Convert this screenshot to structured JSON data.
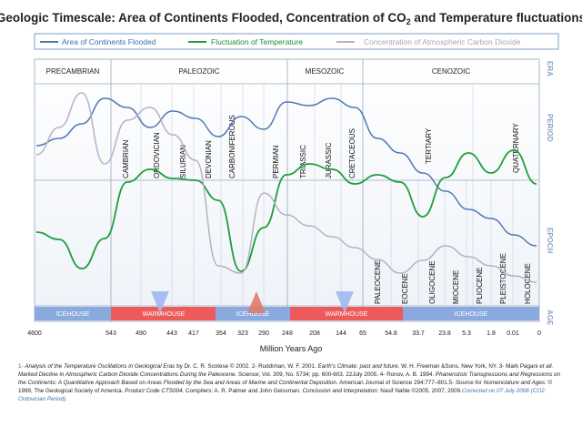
{
  "chart_data": {
    "type": "line",
    "title_parts": {
      "pre": "Geologic Timescale: Area of Continents Flooded, Concentration of CO",
      "sub": "2",
      "post": " and Temperature fluctuations"
    },
    "xlabel": "Million Years Ago",
    "x_ticks": [
      "4600",
      "543",
      "490",
      "443",
      "417",
      "354",
      "323",
      "290",
      "248",
      "208",
      "144",
      "65",
      "54.8",
      "33.7",
      "23.8",
      "5.3",
      "1.8",
      "0.01",
      "0"
    ],
    "legend": [
      {
        "name": "Area of Continents Flooded",
        "color": "#4f79b5"
      },
      {
        "name": "Fluctuation of Temperature",
        "color": "#1e9e3a"
      },
      {
        "name": "Concentration of Atmospheric Carbon Dioxide",
        "color": "#b6b0c9"
      }
    ],
    "row_labels": [
      "ERA",
      "PERIOD",
      "EPOCH",
      "AGE"
    ],
    "eras": [
      "PRECAMBRIAN",
      "PALEOZOIC",
      "MESOZOIC",
      "CENOZOIC"
    ],
    "periods": [
      "CAMBRIAN",
      "ORDOVICIAN",
      "SILURIAN",
      "DEVONIAN",
      "CARBONIFEROUS",
      "PERMIAN",
      "TRIASSIC",
      "JURASSIC",
      "CRETACEOUS",
      "TERTIARY",
      "QUATERNARY"
    ],
    "epochs": [
      "PALEOCENE",
      "EOCENE",
      "OLIGOCENE",
      "MIOCENE",
      "PLIOCENE",
      "PLEISTOCENE",
      "HOLOCENE"
    ],
    "age_bands": [
      "ICEHOUSE",
      "WARMHOUSE",
      "ICEHOUSE",
      "WARMHOUSE",
      "ICEHOUSE"
    ],
    "colors": {
      "icehouse": "#8aa9df",
      "warmhouse": "#ee5a5a",
      "arrow_blue": "#9db9f0",
      "arrow_red": "#e07a6a",
      "legend_border": "#7d9cc6",
      "side_label": "#8da6c8"
    },
    "series": [
      {
        "name": "Area of Continents Flooded",
        "values": [
          160,
          152,
          136,
          108,
          118,
          140,
          122,
          130,
          150,
          128,
          142,
          112,
          116,
          108,
          118,
          152,
          168,
          190,
          210,
          230,
          240,
          258,
          270
        ]
      },
      {
        "name": "Fluctuation of Temperature",
        "values": [
          255,
          263,
          295,
          262,
          200,
          186,
          196,
          198,
          220,
          298,
          250,
          192,
          180,
          186,
          202,
          192,
          200,
          238,
          195,
          168,
          190,
          165,
          202
        ]
      },
      {
        "name": "Concentration of Atmospheric Carbon Dioxide",
        "values": [
          170,
          140,
          102,
          180,
          132,
          118,
          148,
          176,
          292,
          300,
          212,
          236,
          248,
          260,
          272,
          285,
          300,
          286,
          270,
          282,
          292,
          303,
          310
        ]
      }
    ]
  },
  "footnote": {
    "p1": "1- ",
    "p2": "Analysis of the Temperature Oscillations in Geological Eras",
    "p3": " by Dr. C. R. Scotese © 2002. 2- Ruddiman, W. F. 2001. ",
    "p4": "Earth's Climate: past and future.",
    "p5": " W. H. Freeman &Sons. New York, NY. 3- Mark Pagani ",
    "p6": "et all. Marked Decline in Atmospheric Carbon Dioxide Concentrations During the Paleocene.",
    "p7": " Science; Vol. 309, No. 5734; pp. 600-603. 22July 2005. 4- Ronov, A. B. 1994. ",
    "p8": "Phanerozoic Transgressions and Regressions on the Continents: A Quantitative Approach Based on Areas Flooded by the Sea and Areas of Marine and Continental Deposition.",
    "p9": " American Journal of Science 294:777–801.5- ",
    "p10": "Source for Nomenclature and Ages:",
    "p11": " © 1999, The Geological Society of America. ",
    "p12": "Product Code CTS004.",
    "p13": " Compilers: A. R. Palmer and John Geissman. ",
    "p14": "Conclusion and Interpretation:",
    "p15": " Nasif Nahle ©2005, 2007, 2009.",
    "p16": "Corrected on 07 July 2008 (CO2: Ordovician Period)."
  }
}
